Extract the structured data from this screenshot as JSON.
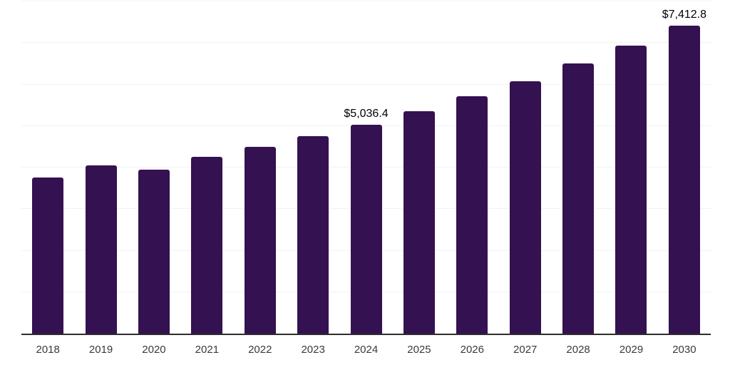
{
  "chart_data": {
    "type": "bar",
    "title": "",
    "xlabel": "",
    "ylabel": "",
    "categories": [
      "2018",
      "2019",
      "2020",
      "2021",
      "2022",
      "2023",
      "2024",
      "2025",
      "2026",
      "2027",
      "2028",
      "2029",
      "2030"
    ],
    "values": [
      3760,
      4050,
      3950,
      4250,
      4500,
      4760,
      5036.4,
      5360,
      5715,
      6080,
      6500,
      6930,
      7412.8
    ],
    "value_labels": [
      "",
      "",
      "",
      "",
      "",
      "",
      "$5,036.4",
      "",
      "",
      "",
      "",
      "",
      "$7,412.8"
    ],
    "ylim": [
      0,
      8000
    ],
    "gridline_step": 1000,
    "grid": true,
    "legend_position": "none",
    "y_axis_labels_visible": false,
    "colors": {
      "bar": "#341150",
      "axis_line": "#2d2d2d",
      "gridline": "#f2f2f4",
      "tick_label": "#3a3a3a",
      "value_label": "#000000"
    }
  }
}
